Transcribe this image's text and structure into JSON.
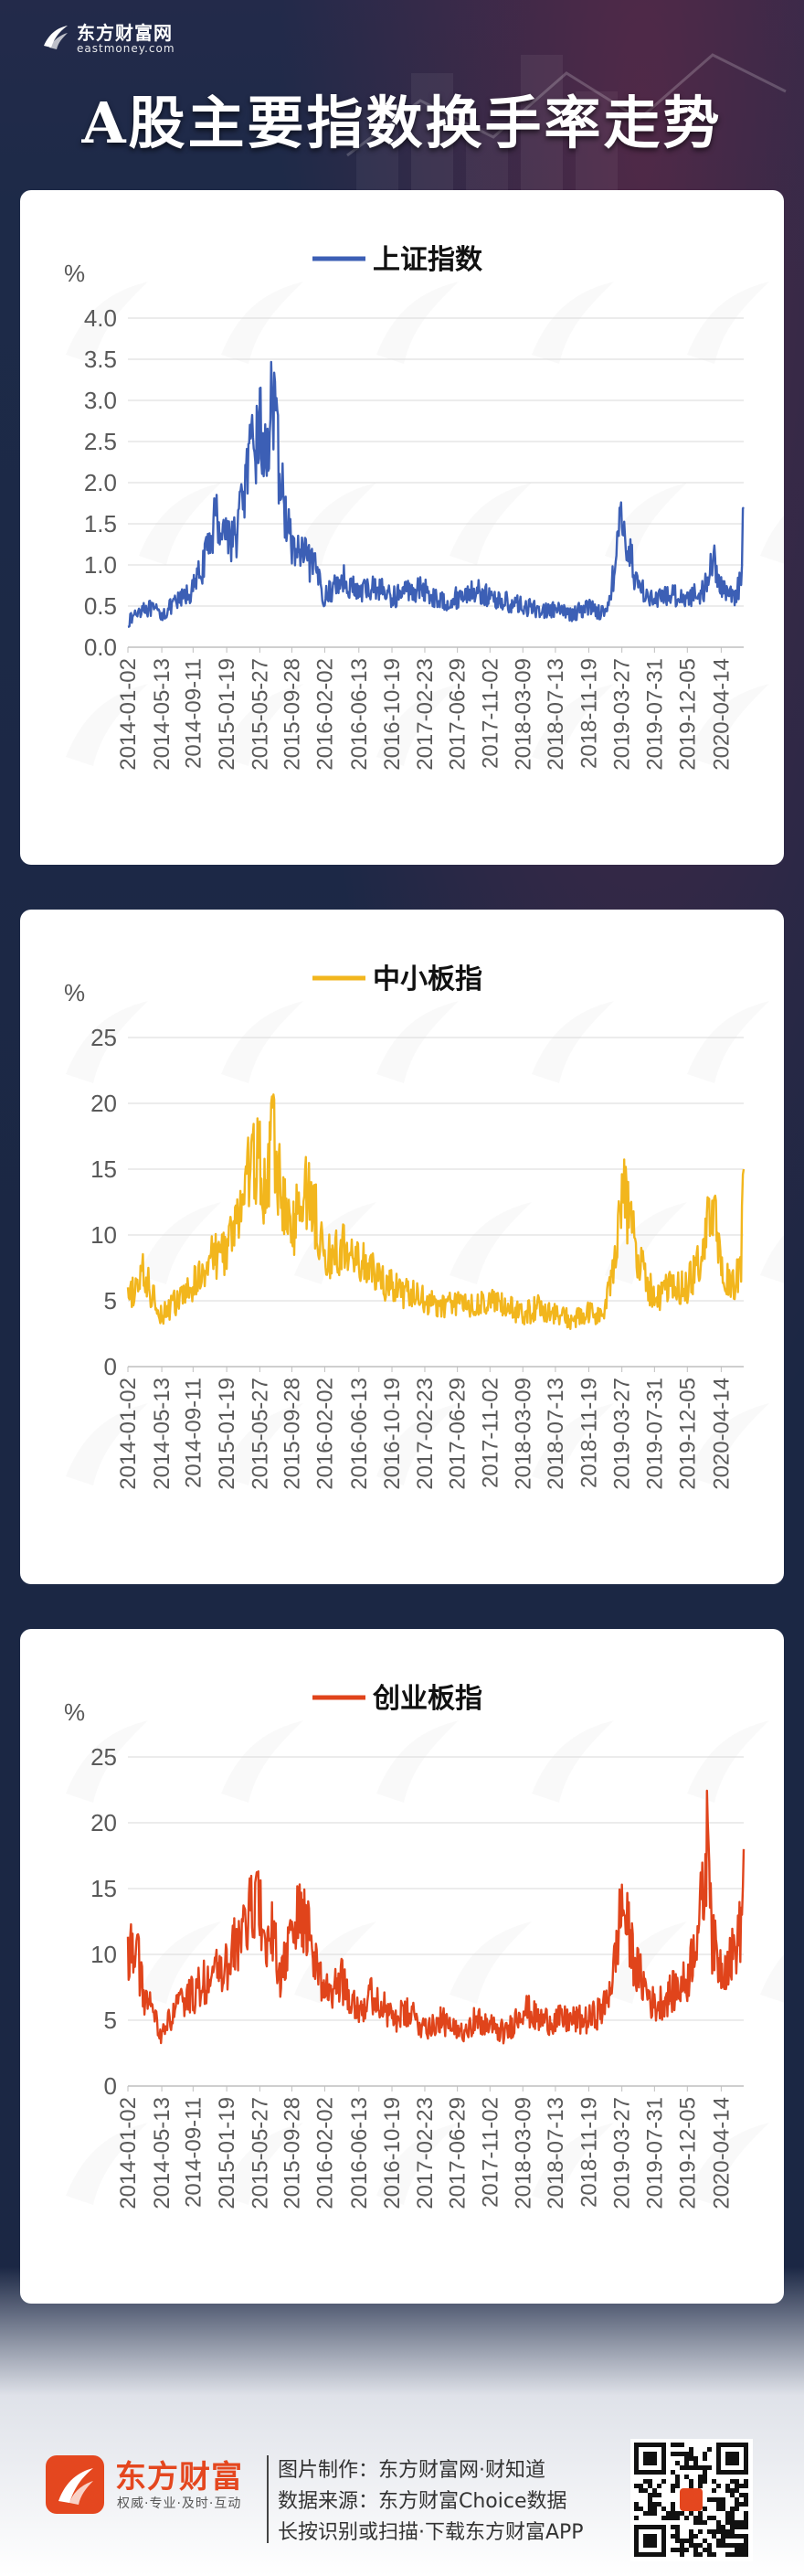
{
  "header": {
    "brand_name": "东方财富网",
    "brand_domain": "eastmoney.com",
    "title": "A股主要指数换手率走势"
  },
  "colors": {
    "shanghai": "#3c5fb5",
    "smb": "#f2b61d",
    "chinext": "#e0441b"
  },
  "chart_data": [
    {
      "type": "line",
      "title": "上证指数",
      "legend_position": "top-center",
      "ylabel": "%",
      "ylim": [
        0,
        4.0
      ],
      "yticks": [
        "0.0",
        "0.5",
        "1.0",
        "1.5",
        "2.0",
        "2.5",
        "3.0",
        "3.5",
        "4.0"
      ],
      "grid": true,
      "x_tick_labels": [
        "2014-01-02",
        "2014-05-13",
        "2014-09-11",
        "2015-01-19",
        "2015-05-27",
        "2015-09-28",
        "2016-02-02",
        "2016-06-13",
        "2016-10-19",
        "2017-02-23",
        "2017-06-29",
        "2017-11-02",
        "2018-03-09",
        "2018-07-13",
        "2018-11-19",
        "2019-03-27",
        "2019-07-31",
        "2019-12-05",
        "2020-04-14"
      ],
      "series": [
        {
          "name": "上证指数",
          "x": [
            "2014-01-02",
            "2014-03-01",
            "2014-05-13",
            "2014-07-15",
            "2014-09-11",
            "2014-11-01",
            "2014-12-05",
            "2015-01-19",
            "2015-02-20",
            "2015-04-01",
            "2015-05-27",
            "2015-06-20",
            "2015-07-10",
            "2015-08-20",
            "2015-09-28",
            "2015-11-15",
            "2016-01-05",
            "2016-02-02",
            "2016-04-10",
            "2016-06-13",
            "2016-08-15",
            "2016-10-19",
            "2016-12-20",
            "2017-02-23",
            "2017-04-25",
            "2017-06-29",
            "2017-09-01",
            "2017-11-02",
            "2018-01-05",
            "2018-03-09",
            "2018-05-10",
            "2018-07-13",
            "2018-09-15",
            "2018-11-19",
            "2019-01-20",
            "2019-02-25",
            "2019-03-27",
            "2019-05-20",
            "2019-07-31",
            "2019-10-01",
            "2019-12-05",
            "2020-02-10",
            "2020-03-10",
            "2020-04-14",
            "2020-05-30",
            "2020-06-30",
            "2020-07-10"
          ],
          "values": [
            0.3,
            0.5,
            0.4,
            0.55,
            0.7,
            1.1,
            1.6,
            1.4,
            1.3,
            2.0,
            2.7,
            2.2,
            3.1,
            1.9,
            1.2,
            1.1,
            0.9,
            0.6,
            0.85,
            0.65,
            0.75,
            0.6,
            0.7,
            0.7,
            0.55,
            0.6,
            0.7,
            0.6,
            0.55,
            0.5,
            0.45,
            0.45,
            0.4,
            0.5,
            0.4,
            0.9,
            1.6,
            0.8,
            0.55,
            0.65,
            0.6,
            0.7,
            1.1,
            0.75,
            0.6,
            0.8,
            1.7
          ]
        }
      ]
    },
    {
      "type": "line",
      "title": "中小板指",
      "legend_position": "top-center",
      "ylabel": "%",
      "ylim": [
        0,
        25
      ],
      "yticks": [
        "0",
        "5",
        "10",
        "15",
        "20",
        "25"
      ],
      "grid": true,
      "x_tick_labels": [
        "2014-01-02",
        "2014-05-13",
        "2014-09-11",
        "2015-01-19",
        "2015-05-27",
        "2015-09-28",
        "2016-02-02",
        "2016-06-13",
        "2016-10-19",
        "2017-02-23",
        "2017-06-29",
        "2017-11-02",
        "2018-03-09",
        "2018-07-13",
        "2018-11-19",
        "2019-03-27",
        "2019-07-31",
        "2019-12-05",
        "2020-04-14"
      ],
      "series": [
        {
          "name": "中小板指",
          "x": [
            "2014-01-02",
            "2014-03-01",
            "2014-05-13",
            "2014-07-15",
            "2014-09-11",
            "2014-11-01",
            "2015-01-19",
            "2015-03-01",
            "2015-04-15",
            "2015-05-27",
            "2015-06-20",
            "2015-07-10",
            "2015-08-20",
            "2015-09-28",
            "2015-11-15",
            "2016-01-05",
            "2016-02-02",
            "2016-04-10",
            "2016-06-13",
            "2016-08-15",
            "2016-10-19",
            "2016-12-20",
            "2017-02-23",
            "2017-04-25",
            "2017-06-29",
            "2017-09-01",
            "2017-11-02",
            "2018-01-05",
            "2018-03-09",
            "2018-05-10",
            "2018-07-13",
            "2018-09-15",
            "2018-11-19",
            "2019-01-20",
            "2019-02-25",
            "2019-03-27",
            "2019-05-20",
            "2019-07-31",
            "2019-10-01",
            "2019-12-05",
            "2020-02-10",
            "2020-03-10",
            "2020-04-14",
            "2020-05-30",
            "2020-06-30",
            "2020-07-10"
          ],
          "values": [
            5,
            7,
            4,
            5,
            6,
            8,
            9,
            11,
            15,
            16,
            12,
            18,
            13,
            10,
            14,
            11,
            8,
            9,
            8,
            7,
            6,
            5.5,
            5,
            4.5,
            5,
            4.5,
            5,
            4.5,
            4,
            4.5,
            4,
            3.5,
            4,
            4,
            8,
            14,
            9,
            5,
            6,
            6,
            9,
            13,
            7,
            6,
            8,
            15
          ]
        }
      ]
    },
    {
      "type": "line",
      "title": "创业板指",
      "legend_position": "top-center",
      "ylabel": "%",
      "ylim": [
        0,
        25
      ],
      "yticks": [
        "0",
        "5",
        "10",
        "15",
        "20",
        "25"
      ],
      "grid": true,
      "x_tick_labels": [
        "2014-01-02",
        "2014-05-13",
        "2014-09-11",
        "2015-01-19",
        "2015-05-27",
        "2015-09-28",
        "2016-02-02",
        "2016-06-13",
        "2016-10-19",
        "2017-02-23",
        "2017-06-29",
        "2017-11-02",
        "2018-03-09",
        "2018-07-13",
        "2018-11-19",
        "2019-03-27",
        "2019-07-31",
        "2019-12-05",
        "2020-04-14"
      ],
      "series": [
        {
          "name": "创业板指",
          "x": [
            "2014-01-02",
            "2014-02-01",
            "2014-03-01",
            "2014-05-13",
            "2014-07-15",
            "2014-09-11",
            "2014-11-01",
            "2015-01-19",
            "2015-03-01",
            "2015-04-15",
            "2015-05-27",
            "2015-06-20",
            "2015-07-10",
            "2015-08-20",
            "2015-09-28",
            "2015-11-15",
            "2016-01-05",
            "2016-02-02",
            "2016-04-10",
            "2016-06-13",
            "2016-08-15",
            "2016-10-19",
            "2016-12-20",
            "2017-02-23",
            "2017-04-25",
            "2017-06-29",
            "2017-09-01",
            "2017-11-02",
            "2018-01-05",
            "2018-03-09",
            "2018-05-10",
            "2018-07-13",
            "2018-09-15",
            "2018-11-19",
            "2019-01-20",
            "2019-02-25",
            "2019-03-27",
            "2019-05-20",
            "2019-07-31",
            "2019-10-01",
            "2019-12-05",
            "2020-02-10",
            "2020-02-25",
            "2020-03-10",
            "2020-04-14",
            "2020-05-30",
            "2020-06-30",
            "2020-07-10"
          ],
          "values": [
            10,
            11,
            7,
            4,
            6,
            7,
            8,
            9,
            11,
            13,
            14,
            9,
            12,
            8,
            12,
            13,
            9,
            7,
            8,
            6,
            7,
            5,
            5.5,
            4.5,
            5,
            4,
            5,
            4.5,
            4,
            6,
            5,
            5,
            5,
            5,
            6,
            9,
            14,
            9,
            6,
            7,
            8,
            15,
            21,
            11,
            9,
            10,
            12,
            18
          ]
        }
      ]
    }
  ],
  "footer": {
    "brand_name": "东方财富",
    "slogan": "权威·专业·及时·互动",
    "credit": "图片制作：东方财富网·财知道",
    "source": "数据来源：东方财富Choice数据",
    "cta": "长按识别或扫描·下载东方财富APP"
  }
}
